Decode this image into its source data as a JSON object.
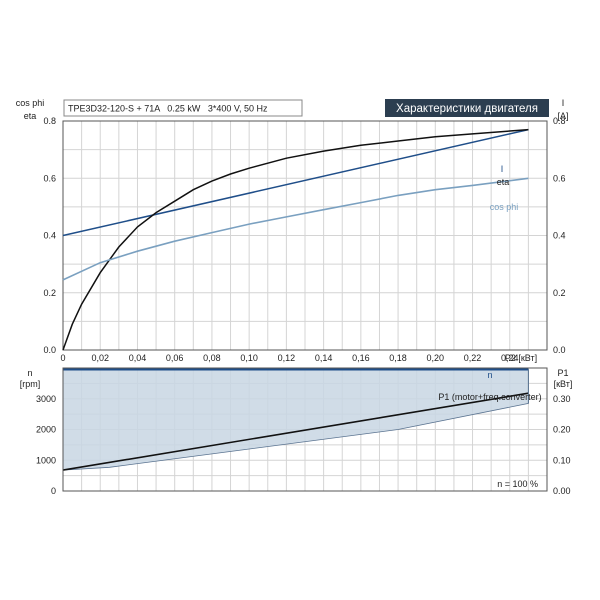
{
  "header": {
    "pump_info": "TPE3D32-120-S + 71A   0.25 kW   3*400 V, 50 Hz",
    "title": "Характеристики двигателя"
  },
  "colors": {
    "eta": "#111111",
    "current": "#1f4e89",
    "cos_phi": "#7aa0c0",
    "speed": "#1f4e89",
    "p1": "#111111",
    "fill": "#c8d6e3",
    "title_bg": "#2c3e50"
  },
  "chart_data": [
    {
      "type": "line",
      "ylabel_left": [
        "cos phi",
        "eta"
      ],
      "ylabel_right": [
        "I",
        "[A]"
      ],
      "xlabel": "P2 [кВт]",
      "xlim": [
        0,
        0.26
      ],
      "ylim_left": [
        0,
        0.8
      ],
      "ylim_right": [
        0,
        0.8
      ],
      "xticks": [
        "0",
        "0,02",
        "0,04",
        "0,06",
        "0,08",
        "0,10",
        "0,12",
        "0,14",
        "0,16",
        "0,18",
        "0,20",
        "0,22",
        "0,24"
      ],
      "yticks_left": [
        "0.0",
        "0.2",
        "0.4",
        "0.6",
        "0.8"
      ],
      "yticks_right": [
        "0.0",
        "0.2",
        "0.4",
        "0.6",
        "0.8"
      ],
      "series": [
        {
          "name": "I",
          "x": [
            0,
            0.25
          ],
          "y": [
            0.4,
            0.77
          ]
        },
        {
          "name": "eta",
          "x": [
            0,
            0.005,
            0.01,
            0.02,
            0.03,
            0.04,
            0.05,
            0.06,
            0.07,
            0.08,
            0.09,
            0.1,
            0.12,
            0.14,
            0.16,
            0.18,
            0.2,
            0.22,
            0.25
          ],
          "y": [
            0.0,
            0.09,
            0.16,
            0.27,
            0.36,
            0.43,
            0.48,
            0.52,
            0.56,
            0.59,
            0.615,
            0.635,
            0.67,
            0.695,
            0.715,
            0.73,
            0.745,
            0.755,
            0.77
          ]
        },
        {
          "name": "cos phi",
          "x": [
            0,
            0.02,
            0.04,
            0.06,
            0.08,
            0.1,
            0.12,
            0.14,
            0.16,
            0.18,
            0.2,
            0.22,
            0.25
          ],
          "y": [
            0.245,
            0.305,
            0.345,
            0.38,
            0.41,
            0.44,
            0.465,
            0.49,
            0.515,
            0.54,
            0.56,
            0.575,
            0.6
          ]
        }
      ]
    },
    {
      "type": "area",
      "ylabel_left": [
        "n",
        "[rpm]"
      ],
      "ylabel_right": [
        "P1",
        "[кВт]"
      ],
      "xlim": [
        0,
        0.26
      ],
      "ylim_left": [
        0,
        4000
      ],
      "ylim_right": [
        0,
        0.4
      ],
      "yticks_left": [
        "0",
        "1000",
        "2000",
        "3000"
      ],
      "yticks_right": [
        "0.00",
        "0.10",
        "0.20",
        "0.30"
      ],
      "annotation": "n = 100 %",
      "series": [
        {
          "name": "n",
          "x": [
            0,
            0.25
          ],
          "y": [
            3950,
            3950
          ]
        },
        {
          "name": "P1 (motor+freq.converter)",
          "x": [
            0,
            0.25
          ],
          "y": [
            0.068,
            0.318
          ]
        }
      ],
      "fill_lower_boundary": {
        "x": [
          0,
          0.025,
          0.18,
          0.25
        ],
        "y": [
          0.068,
          0.077,
          0.2,
          0.285
        ]
      }
    }
  ]
}
